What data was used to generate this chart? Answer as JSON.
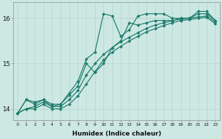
{
  "xlabel": "Humidex (Indice chaleur)",
  "xlim": [
    -0.5,
    23.5
  ],
  "ylim": [
    13.75,
    16.35
  ],
  "yticks": [
    14,
    15,
    16
  ],
  "xticks": [
    0,
    1,
    2,
    3,
    4,
    5,
    6,
    7,
    8,
    9,
    10,
    11,
    12,
    13,
    14,
    15,
    16,
    17,
    18,
    19,
    20,
    21,
    22,
    23
  ],
  "bg_color": "#cde8e3",
  "grid_color": "#b0d4cc",
  "line_color": "#1e7c6e",
  "line_width": 0.9,
  "marker": "D",
  "marker_size": 2.2,
  "lines": [
    [
      13.9,
      14.2,
      14.15,
      14.2,
      14.1,
      14.1,
      14.35,
      14.6,
      15.1,
      15.25,
      16.1,
      16.05,
      15.6,
      15.75,
      16.05,
      16.1,
      16.1,
      16.1,
      16.0,
      16.0,
      16.0,
      16.15,
      16.15,
      15.95
    ],
    [
      13.9,
      14.2,
      14.1,
      14.2,
      14.05,
      14.1,
      14.3,
      14.5,
      15.0,
      14.8,
      15.0,
      15.35,
      15.5,
      15.9,
      15.85,
      15.9,
      15.95,
      15.95,
      15.95,
      16.0,
      16.0,
      16.1,
      16.1,
      15.95
    ],
    [
      13.9,
      14.0,
      14.05,
      14.15,
      14.05,
      14.05,
      14.2,
      14.4,
      14.75,
      15.0,
      15.2,
      15.35,
      15.48,
      15.58,
      15.68,
      15.78,
      15.85,
      15.9,
      15.95,
      15.98,
      16.0,
      16.03,
      16.05,
      15.92
    ],
    [
      13.9,
      14.0,
      14.0,
      14.1,
      14.0,
      14.0,
      14.1,
      14.28,
      14.55,
      14.82,
      15.08,
      15.25,
      15.38,
      15.5,
      15.6,
      15.7,
      15.77,
      15.84,
      15.9,
      15.95,
      15.97,
      16.0,
      16.02,
      15.88
    ]
  ]
}
